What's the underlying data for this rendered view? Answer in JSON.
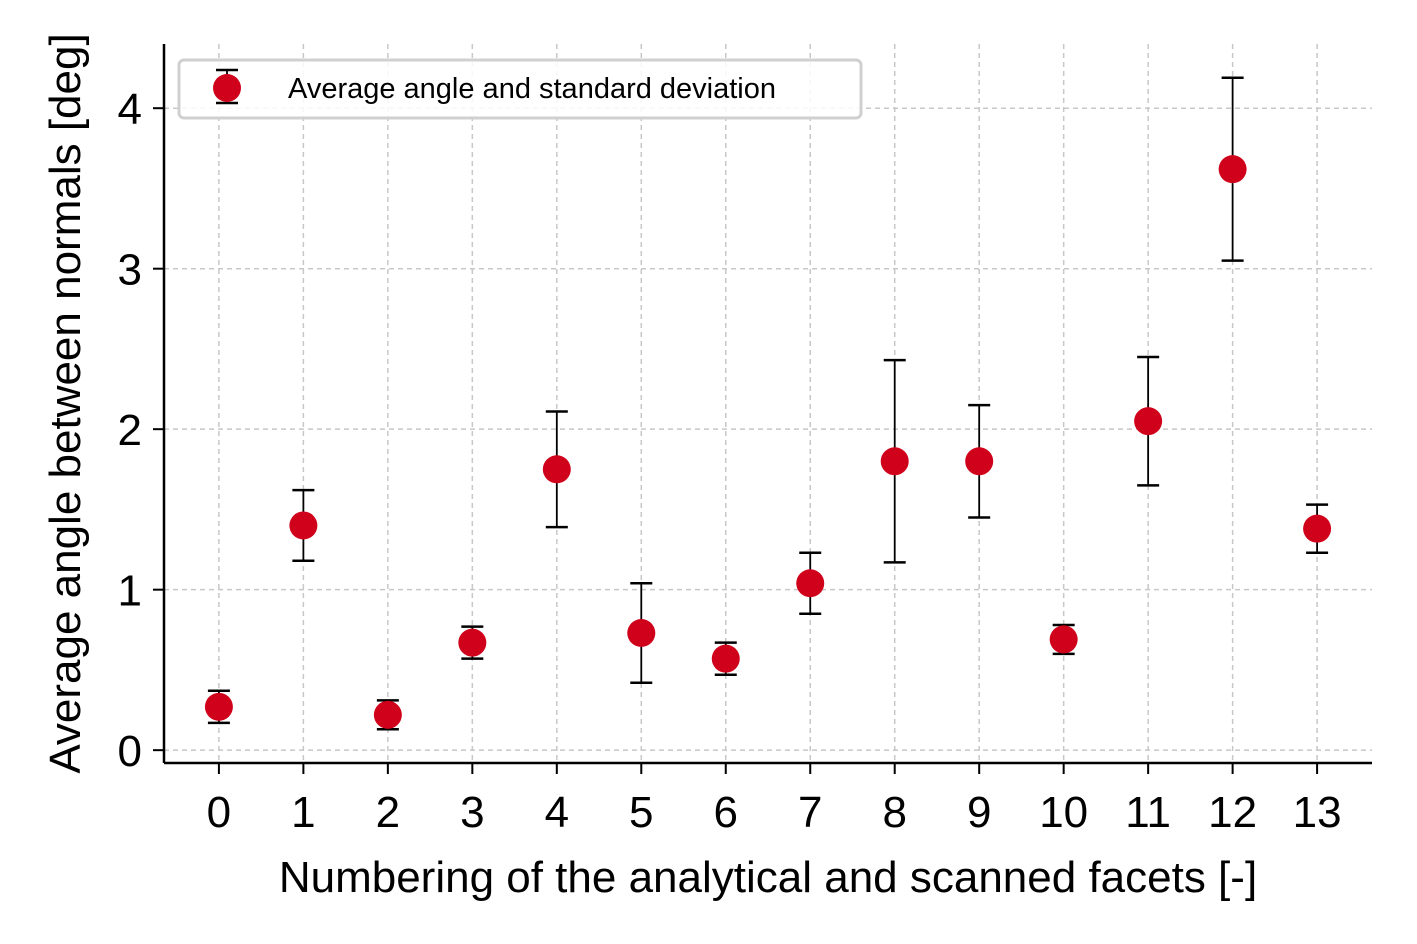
{
  "chart_data": {
    "type": "scatter",
    "title": "",
    "xlabel": "Numbering of the analytical and scanned facets [-]",
    "ylabel": "Average angle between normals [deg]",
    "x_ticks": [
      "0",
      "1",
      "2",
      "3",
      "4",
      "5",
      "6",
      "7",
      "8",
      "9",
      "10",
      "11",
      "12",
      "13"
    ],
    "y_ticks": [
      "0",
      "1",
      "2",
      "3",
      "4"
    ],
    "xlim": [
      -0.65,
      13.65
    ],
    "ylim": [
      -0.08,
      4.4
    ],
    "grid": true,
    "legend_position": "top-left",
    "series": [
      {
        "name": "Average angle and standard deviation",
        "color": "#d0021b",
        "errorbar_color": "#000000",
        "x": [
          0,
          1,
          2,
          3,
          4,
          5,
          6,
          7,
          8,
          9,
          10,
          11,
          12,
          13
        ],
        "y": [
          0.27,
          1.4,
          0.22,
          0.67,
          1.75,
          0.73,
          0.57,
          1.04,
          1.8,
          1.8,
          0.69,
          2.05,
          3.62,
          1.38
        ],
        "yerr": [
          0.1,
          0.22,
          0.09,
          0.1,
          0.36,
          0.31,
          0.1,
          0.19,
          0.63,
          0.35,
          0.09,
          0.4,
          0.57,
          0.15
        ]
      }
    ]
  }
}
